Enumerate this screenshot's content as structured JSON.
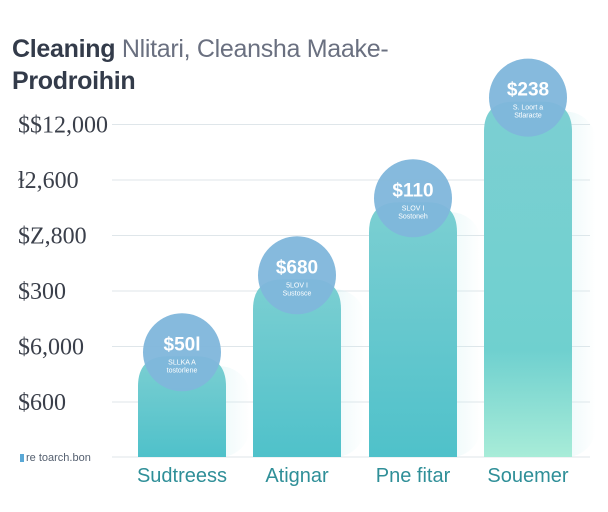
{
  "title": "Cleaning Nlitari, Cleansha Maake-",
  "title_parts": [
    "Cleaning",
    "Nlitari, Cleansha Maake-"
  ],
  "subtitle": "Prodroihin",
  "legend": {
    "label": "re toarch.bon",
    "color": "#5aa8d6"
  },
  "colors": {
    "bar_top": "#7ccfd2",
    "bar_bottom": "#54c3cb",
    "bar_light_end": "#a8ecd8",
    "bubble": "#7fb6db",
    "grid": "#dfe6ea",
    "xlabel": "#2f8f98"
  },
  "chart_data": {
    "type": "bar",
    "title": "Cleaning Nlitari, Cleansha Maake-",
    "subtitle": "Prodroihin",
    "categories": [
      "Sudtreess",
      "Atignar",
      "Pne fitar",
      "Souemer"
    ],
    "y_tick_labels": [
      "$600",
      "$6,000",
      "$300",
      "$Z,800",
      "ɫ2,600",
      "$$12,000"
    ],
    "ylim": [
      0,
      6.5
    ],
    "values": [
      1.7,
      3.0,
      4.3,
      6.0
    ],
    "bar_labels": [
      "$50l",
      "$680",
      "$110",
      "$238"
    ],
    "bar_notes": [
      [
        "SLLKA A",
        "tostorlene"
      ],
      [
        "5LOV I",
        "Sustosce"
      ],
      [
        "SLOV I",
        "Sostoneh"
      ],
      [
        "S. Loort a",
        "Stlaracte"
      ]
    ],
    "grid": true,
    "legend_position": "bottom-left"
  }
}
